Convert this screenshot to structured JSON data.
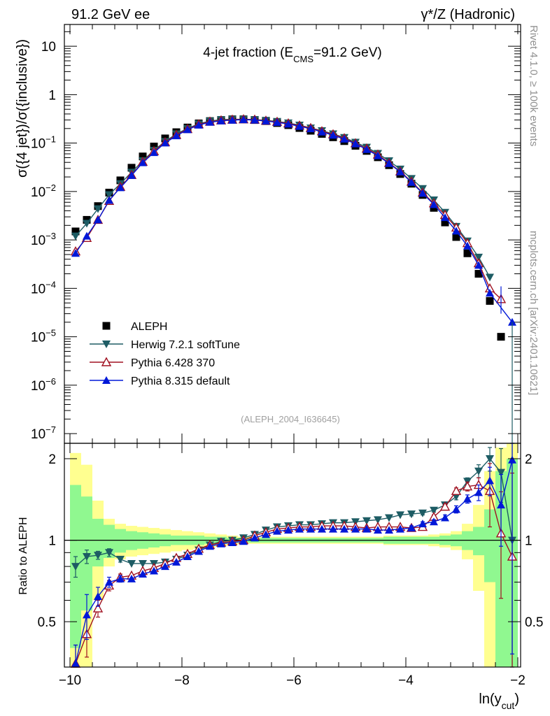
{
  "header": {
    "left": "91.2 GeV ee",
    "right": "γ*/Z (Hadronic)"
  },
  "side": {
    "top": "Rivet 4.1.0, ≥ 100k events",
    "bottom": "mcplots.cern.ch [arXiv:2401.10621]"
  },
  "chart_data": {
    "type": "scatter",
    "title_main": "4-jet fraction (E",
    "title_sub": "CMS",
    "title_tail": "=91.2 GeV)",
    "analysis_tag": "(ALEPH_2004_I636645)",
    "ylabel_main": "σ({4 jet})/σ({inclusive})",
    "ylabel_ratio": "Ratio to ALEPH",
    "xlabel_main": "ln(y",
    "xlabel_sub": "cut",
    "xlabel_tail": ")",
    "xlim": [
      -10.1,
      -1.95
    ],
    "ylim_main": [
      -7.2,
      1.45
    ],
    "ylim_ratio": [
      0.34,
      2.28
    ],
    "x_ticks": [
      {
        "v": -10,
        "label": "−10"
      },
      {
        "v": -8,
        "label": "−8"
      },
      {
        "v": -6,
        "label": "−6"
      },
      {
        "v": -4,
        "label": "−4"
      },
      {
        "v": -2,
        "label": "−2"
      }
    ],
    "y_ticks": [
      {
        "e": 1,
        "base": "10",
        "sup": ""
      },
      {
        "e": 0,
        "base": "1",
        "sup": ""
      },
      {
        "e": -1,
        "base": "10",
        "sup": "−1"
      },
      {
        "e": -2,
        "base": "10",
        "sup": "−2"
      },
      {
        "e": -3,
        "base": "10",
        "sup": "−3"
      },
      {
        "e": -4,
        "base": "10",
        "sup": "−4"
      },
      {
        "e": -5,
        "base": "10",
        "sup": "−5"
      },
      {
        "e": -6,
        "base": "10",
        "sup": "−6"
      },
      {
        "e": -7,
        "base": "10",
        "sup": "−7"
      }
    ],
    "ratio_ticks": [
      {
        "v": 0.5,
        "label": "0.5"
      },
      {
        "v": 1,
        "label": "1"
      },
      {
        "v": 2,
        "label": "2"
      }
    ],
    "x": [
      -9.9,
      -9.7,
      -9.5,
      -9.3,
      -9.1,
      -8.9,
      -8.7,
      -8.5,
      -8.3,
      -8.1,
      -7.9,
      -7.7,
      -7.5,
      -7.3,
      -7.1,
      -6.9,
      -6.7,
      -6.5,
      -6.3,
      -6.1,
      -5.9,
      -5.7,
      -5.5,
      -5.3,
      -5.1,
      -4.9,
      -4.7,
      -4.5,
      -4.3,
      -4.1,
      -3.9,
      -3.7,
      -3.5,
      -3.3,
      -3.1,
      -2.9,
      -2.7,
      -2.5,
      -2.3,
      -2.1
    ],
    "colors": {
      "data": "#000000",
      "herwig": "#1d5c64",
      "pythia6": "#a01020",
      "pythia8": "#0018d8",
      "band_stat": "#90f890",
      "band_tot": "#ffff90"
    },
    "legend": [
      {
        "key": "data",
        "label": "ALEPH"
      },
      {
        "key": "herwig",
        "label": "Herwig 7.2.1 softTune"
      },
      {
        "key": "pythia6",
        "label": "Pythia 6.428 370"
      },
      {
        "key": "pythia8",
        "label": "Pythia 8.315 default"
      }
    ],
    "series": [
      {
        "key": "data",
        "name": "ALEPH",
        "values": [
          0.0015,
          0.0026,
          0.005,
          0.0095,
          0.017,
          0.031,
          0.053,
          0.085,
          0.125,
          0.168,
          0.21,
          0.255,
          0.285,
          0.3,
          0.31,
          0.31,
          0.3,
          0.285,
          0.26,
          0.235,
          0.205,
          0.18,
          0.155,
          0.132,
          0.11,
          0.088,
          0.069,
          0.051,
          0.035,
          0.023,
          0.0145,
          0.0085,
          0.0046,
          0.0023,
          0.00115,
          0.00053,
          0.0002,
          5.5e-05,
          1e-05,
          null
        ]
      },
      {
        "key": "herwig",
        "name": "Herwig 7.2.1 softTune",
        "values": [
          0.0012,
          0.0022,
          0.0044,
          0.0086,
          0.0145,
          0.025,
          0.043,
          0.071,
          0.108,
          0.155,
          0.2,
          0.25,
          0.285,
          0.305,
          0.31,
          0.31,
          0.305,
          0.295,
          0.28,
          0.26,
          0.235,
          0.205,
          0.18,
          0.155,
          0.13,
          0.104,
          0.082,
          0.061,
          0.043,
          0.029,
          0.0185,
          0.0115,
          0.0067,
          0.0037,
          0.0019,
          0.00095,
          0.00044,
          0.00017,
          null,
          null
        ]
      },
      {
        "key": "pythia6",
        "name": "Pythia 6.428 370",
        "values": [
          0.00058,
          0.0011,
          0.0026,
          0.0064,
          0.0125,
          0.022,
          0.041,
          0.068,
          0.104,
          0.148,
          0.195,
          0.244,
          0.278,
          0.295,
          0.305,
          0.31,
          0.305,
          0.29,
          0.275,
          0.255,
          0.23,
          0.205,
          0.176,
          0.152,
          0.126,
          0.099,
          0.077,
          0.058,
          0.039,
          0.026,
          0.016,
          0.0095,
          0.0057,
          0.0033,
          0.0018,
          0.00086,
          0.00033,
          0.0001,
          6e-05,
          null
        ]
      },
      {
        "key": "pythia8",
        "name": "Pythia 8.315 default",
        "values": [
          0.00053,
          0.0012,
          0.0026,
          0.0066,
          0.012,
          0.0215,
          0.0395,
          0.064,
          0.101,
          0.142,
          0.19,
          0.236,
          0.27,
          0.288,
          0.298,
          0.305,
          0.3,
          0.286,
          0.268,
          0.248,
          0.222,
          0.198,
          0.17,
          0.146,
          0.121,
          0.097,
          0.074,
          0.055,
          0.038,
          0.0255,
          0.0155,
          0.0092,
          0.0054,
          0.0029,
          0.00153,
          0.00075,
          0.0003,
          8e-05,
          null,
          2e-05
        ]
      }
    ],
    "ratios": {
      "herwig": [
        0.8,
        0.87,
        0.88,
        0.9,
        0.85,
        0.82,
        0.82,
        0.82,
        0.83,
        0.85,
        0.88,
        0.92,
        0.96,
        0.99,
        1.0,
        1.02,
        1.05,
        1.09,
        1.12,
        1.13,
        1.14,
        1.14,
        1.15,
        1.16,
        1.16,
        1.17,
        1.18,
        1.19,
        1.21,
        1.24,
        1.25,
        1.26,
        1.29,
        1.35,
        1.45,
        1.65,
        1.8,
        2.0,
        1.78,
        1.0
      ],
      "pythia6": [
        0.35,
        0.45,
        0.56,
        0.68,
        0.73,
        0.74,
        0.77,
        0.79,
        0.82,
        0.86,
        0.89,
        0.93,
        0.96,
        0.98,
        0.99,
        1.0,
        1.04,
        1.07,
        1.1,
        1.11,
        1.12,
        1.12,
        1.13,
        1.13,
        1.13,
        1.12,
        1.11,
        1.12,
        1.12,
        1.12,
        1.11,
        1.12,
        1.22,
        1.33,
        1.52,
        1.58,
        1.6,
        1.52,
        1.06,
        0.87
      ],
      "pythia8": [
        0.35,
        0.53,
        0.62,
        0.7,
        0.72,
        0.72,
        0.75,
        0.77,
        0.8,
        0.83,
        0.87,
        0.91,
        0.95,
        0.97,
        0.98,
        0.99,
        1.02,
        1.05,
        1.08,
        1.09,
        1.1,
        1.1,
        1.1,
        1.1,
        1.1,
        1.1,
        1.1,
        1.09,
        1.09,
        1.1,
        1.11,
        1.15,
        1.17,
        1.21,
        1.3,
        1.42,
        1.5,
        1.66,
        1.35,
        1.98
      ]
    },
    "ratio_errors": {
      "herwig": [
        0.07,
        0.05,
        0.03,
        0.03,
        0.02,
        0.01,
        0.01,
        0.01,
        0.01,
        0.01,
        0.01,
        0.01,
        0.01,
        0.01,
        0.01,
        0.01,
        0.01,
        0.01,
        0.01,
        0.01,
        0.01,
        0.01,
        0.01,
        0.01,
        0.01,
        0.01,
        0.01,
        0.01,
        0.01,
        0.01,
        0.02,
        0.02,
        0.02,
        0.03,
        0.04,
        0.05,
        0.1,
        0.2,
        0.4,
        1.6
      ],
      "pythia6": [
        0.06,
        0.08,
        0.04,
        0.03,
        0.02,
        0.01,
        0.01,
        0.01,
        0.01,
        0.01,
        0.01,
        0.01,
        0.01,
        0.01,
        0.01,
        0.01,
        0.01,
        0.01,
        0.01,
        0.01,
        0.01,
        0.01,
        0.01,
        0.01,
        0.01,
        0.01,
        0.01,
        0.01,
        0.01,
        0.01,
        0.02,
        0.02,
        0.02,
        0.03,
        0.04,
        0.06,
        0.1,
        0.4,
        0.45,
        0.9
      ],
      "pythia8": [
        0.06,
        0.1,
        0.05,
        0.03,
        0.02,
        0.01,
        0.01,
        0.01,
        0.01,
        0.01,
        0.01,
        0.01,
        0.01,
        0.01,
        0.01,
        0.01,
        0.01,
        0.01,
        0.01,
        0.01,
        0.01,
        0.01,
        0.01,
        0.01,
        0.01,
        0.01,
        0.01,
        0.01,
        0.01,
        0.01,
        0.02,
        0.02,
        0.02,
        0.03,
        0.04,
        0.05,
        0.1,
        0.2,
        0.4,
        1.6
      ]
    },
    "bands": {
      "x_edges": [
        -10.0,
        -9.8,
        -9.6,
        -9.4,
        -9.2,
        -9.0,
        -8.8,
        -8.6,
        -8.4,
        -8.2,
        -8.0,
        -7.8,
        -7.6,
        -7.4,
        -7.2,
        -7.0,
        -6.8,
        -6.6,
        -6.4,
        -6.2,
        -6.0,
        -5.8,
        -5.6,
        -5.4,
        -5.2,
        -5.0,
        -4.8,
        -4.6,
        -4.4,
        -4.2,
        -4.0,
        -3.8,
        -3.6,
        -3.4,
        -3.2,
        -3.0,
        -2.8,
        -2.6,
        -2.4,
        -2.2,
        -2.0
      ],
      "stat": [
        0.6,
        0.45,
        0.2,
        0.14,
        0.1,
        0.08,
        0.07,
        0.06,
        0.05,
        0.04,
        0.04,
        0.04,
        0.03,
        0.03,
        0.02,
        0.02,
        0.02,
        0.02,
        0.02,
        0.02,
        0.02,
        0.02,
        0.02,
        0.02,
        0.02,
        0.02,
        0.02,
        0.02,
        0.03,
        0.03,
        0.03,
        0.03,
        0.03,
        0.04,
        0.05,
        0.08,
        0.12,
        0.3,
        0.8,
        1.0
      ],
      "total": [
        1.1,
        0.9,
        0.4,
        0.2,
        0.15,
        0.13,
        0.12,
        0.11,
        0.1,
        0.09,
        0.08,
        0.07,
        0.06,
        0.05,
        0.04,
        0.03,
        0.03,
        0.03,
        0.03,
        0.03,
        0.03,
        0.03,
        0.03,
        0.03,
        0.03,
        0.03,
        0.03,
        0.03,
        0.04,
        0.04,
        0.04,
        0.04,
        0.05,
        0.06,
        0.08,
        0.15,
        0.35,
        0.8,
        1.2,
        1.4
      ]
    }
  }
}
